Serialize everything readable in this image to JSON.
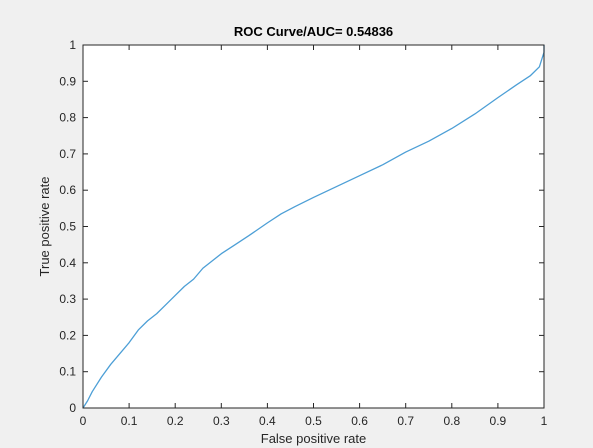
{
  "chart_data": {
    "type": "line",
    "title": "ROC Curve/AUC= 0.54836",
    "xlabel": "False positive rate",
    "ylabel": "True positive rate",
    "xlim": [
      0,
      1
    ],
    "ylim": [
      0,
      1
    ],
    "xticks": [
      0,
      0.1,
      0.2,
      0.3,
      0.4,
      0.5,
      0.6,
      0.7,
      0.8,
      0.9,
      1
    ],
    "yticks": [
      0,
      0.1,
      0.2,
      0.3,
      0.4,
      0.5,
      0.6,
      0.7,
      0.8,
      0.9,
      1
    ],
    "xtick_labels": [
      "0",
      "0.1",
      "0.2",
      "0.3",
      "0.4",
      "0.5",
      "0.6",
      "0.7",
      "0.8",
      "0.9",
      "1"
    ],
    "ytick_labels": [
      "0",
      "0.1",
      "0.2",
      "0.3",
      "0.4",
      "0.5",
      "0.6",
      "0.7",
      "0.8",
      "0.9",
      "1"
    ],
    "grid": false,
    "series": [
      {
        "color": "#4d9fd6",
        "x": [
          0,
          0.01,
          0.02,
          0.04,
          0.06,
          0.08,
          0.1,
          0.12,
          0.14,
          0.16,
          0.18,
          0.2,
          0.22,
          0.24,
          0.26,
          0.28,
          0.3,
          0.33,
          0.36,
          0.4,
          0.43,
          0.46,
          0.5,
          0.55,
          0.6,
          0.65,
          0.7,
          0.75,
          0.8,
          0.85,
          0.9,
          0.94,
          0.97,
          0.99,
          0.995,
          1.0,
          1.0
        ],
        "y": [
          0,
          0.02,
          0.045,
          0.085,
          0.12,
          0.15,
          0.18,
          0.215,
          0.24,
          0.26,
          0.285,
          0.31,
          0.335,
          0.355,
          0.385,
          0.405,
          0.425,
          0.45,
          0.475,
          0.51,
          0.535,
          0.555,
          0.58,
          0.61,
          0.64,
          0.67,
          0.705,
          0.735,
          0.77,
          0.81,
          0.855,
          0.89,
          0.915,
          0.94,
          0.96,
          0.98,
          1.0
        ]
      }
    ]
  }
}
